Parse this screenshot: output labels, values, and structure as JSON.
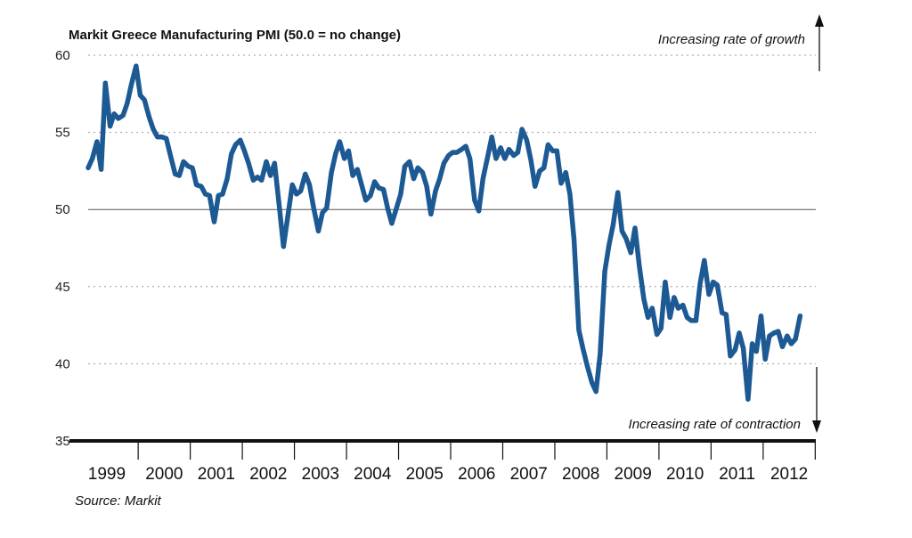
{
  "chart_data": {
    "type": "line",
    "title": "Markit Greece Manufacturing PMI (50.0 = no change)",
    "source": "Source: Markit",
    "annotation_top": "Increasing rate of growth",
    "annotation_bottom": "Increasing rate of contraction",
    "ylim": [
      35,
      60
    ],
    "yticks": [
      60,
      55,
      50,
      45,
      40,
      35
    ],
    "reference_line": 50,
    "grid": "dotted horizontal",
    "x_years": [
      "1999",
      "2000",
      "2001",
      "2002",
      "2003",
      "2004",
      "2005",
      "2006",
      "2007",
      "2008",
      "2009",
      "2010",
      "2011",
      "2012"
    ],
    "xlim": [
      1999.0,
      2012.92
    ],
    "series": [
      {
        "color": "#1d5a94",
        "points": [
          [
            1999.0,
            52.7
          ],
          [
            1999.08,
            53.3
          ],
          [
            1999.17,
            54.4
          ],
          [
            1999.25,
            52.6
          ],
          [
            1999.33,
            58.2
          ],
          [
            1999.42,
            55.4
          ],
          [
            1999.5,
            56.2
          ],
          [
            1999.58,
            55.9
          ],
          [
            1999.67,
            56.1
          ],
          [
            1999.75,
            56.9
          ],
          [
            1999.83,
            58.1
          ],
          [
            1999.92,
            59.3
          ],
          [
            2000.0,
            57.4
          ],
          [
            2000.08,
            57.1
          ],
          [
            2000.17,
            56.0
          ],
          [
            2000.25,
            55.2
          ],
          [
            2000.33,
            54.7
          ],
          [
            2000.42,
            54.7
          ],
          [
            2000.5,
            54.6
          ],
          [
            2000.58,
            53.5
          ],
          [
            2000.67,
            52.3
          ],
          [
            2000.75,
            52.2
          ],
          [
            2000.83,
            53.1
          ],
          [
            2000.92,
            52.8
          ],
          [
            2001.0,
            52.7
          ],
          [
            2001.08,
            51.6
          ],
          [
            2001.17,
            51.5
          ],
          [
            2001.25,
            51.0
          ],
          [
            2001.33,
            50.9
          ],
          [
            2001.42,
            49.2
          ],
          [
            2001.5,
            50.9
          ],
          [
            2001.58,
            51.0
          ],
          [
            2001.67,
            52.0
          ],
          [
            2001.75,
            53.6
          ],
          [
            2001.83,
            54.2
          ],
          [
            2001.92,
            54.5
          ],
          [
            2002.0,
            53.8
          ],
          [
            2002.08,
            53.0
          ],
          [
            2002.17,
            51.9
          ],
          [
            2002.25,
            52.1
          ],
          [
            2002.33,
            51.9
          ],
          [
            2002.42,
            53.1
          ],
          [
            2002.5,
            52.2
          ],
          [
            2002.58,
            53.0
          ],
          [
            2002.67,
            50.2
          ],
          [
            2002.75,
            47.6
          ],
          [
            2002.83,
            49.5
          ],
          [
            2002.92,
            51.6
          ],
          [
            2003.0,
            51.0
          ],
          [
            2003.08,
            51.2
          ],
          [
            2003.17,
            52.3
          ],
          [
            2003.25,
            51.6
          ],
          [
            2003.33,
            50.1
          ],
          [
            2003.42,
            48.6
          ],
          [
            2003.5,
            49.8
          ],
          [
            2003.58,
            50.1
          ],
          [
            2003.67,
            52.4
          ],
          [
            2003.75,
            53.6
          ],
          [
            2003.83,
            54.4
          ],
          [
            2003.92,
            53.3
          ],
          [
            2004.0,
            53.8
          ],
          [
            2004.08,
            52.2
          ],
          [
            2004.17,
            52.6
          ],
          [
            2004.25,
            51.6
          ],
          [
            2004.33,
            50.6
          ],
          [
            2004.42,
            50.9
          ],
          [
            2004.5,
            51.8
          ],
          [
            2004.58,
            51.4
          ],
          [
            2004.67,
            51.3
          ],
          [
            2004.75,
            50.1
          ],
          [
            2004.83,
            49.1
          ],
          [
            2004.92,
            50.1
          ],
          [
            2005.0,
            51.0
          ],
          [
            2005.08,
            52.8
          ],
          [
            2005.17,
            53.1
          ],
          [
            2005.25,
            52.0
          ],
          [
            2005.33,
            52.7
          ],
          [
            2005.42,
            52.4
          ],
          [
            2005.5,
            51.5
          ],
          [
            2005.58,
            49.7
          ],
          [
            2005.67,
            51.2
          ],
          [
            2005.75,
            52.0
          ],
          [
            2005.83,
            53.0
          ],
          [
            2005.92,
            53.5
          ],
          [
            2006.0,
            53.7
          ],
          [
            2006.08,
            53.7
          ],
          [
            2006.17,
            53.9
          ],
          [
            2006.25,
            54.1
          ],
          [
            2006.33,
            53.3
          ],
          [
            2006.42,
            50.6
          ],
          [
            2006.5,
            49.9
          ],
          [
            2006.58,
            52.0
          ],
          [
            2006.67,
            53.4
          ],
          [
            2006.75,
            54.7
          ],
          [
            2006.83,
            53.3
          ],
          [
            2006.92,
            54.0
          ],
          [
            2007.0,
            53.3
          ],
          [
            2007.08,
            53.9
          ],
          [
            2007.17,
            53.5
          ],
          [
            2007.25,
            53.7
          ],
          [
            2007.33,
            55.2
          ],
          [
            2007.42,
            54.5
          ],
          [
            2007.5,
            53.2
          ],
          [
            2007.58,
            51.5
          ],
          [
            2007.67,
            52.5
          ],
          [
            2007.75,
            52.7
          ],
          [
            2007.83,
            54.2
          ],
          [
            2007.92,
            53.8
          ],
          [
            2008.0,
            53.8
          ],
          [
            2008.08,
            51.7
          ],
          [
            2008.17,
            52.4
          ],
          [
            2008.25,
            51.0
          ],
          [
            2008.33,
            48.0
          ],
          [
            2008.42,
            42.2
          ],
          [
            2008.5,
            41.0
          ],
          [
            2008.58,
            39.9
          ],
          [
            2008.67,
            38.8
          ],
          [
            2008.75,
            38.2
          ],
          [
            2008.83,
            40.6
          ],
          [
            2008.92,
            46.0
          ],
          [
            2009.0,
            47.7
          ],
          [
            2009.08,
            49.0
          ],
          [
            2009.17,
            51.1
          ],
          [
            2009.25,
            48.6
          ],
          [
            2009.33,
            48.1
          ],
          [
            2009.42,
            47.2
          ],
          [
            2009.5,
            48.8
          ],
          [
            2009.58,
            46.4
          ],
          [
            2009.67,
            44.2
          ],
          [
            2009.75,
            43.0
          ],
          [
            2009.83,
            43.6
          ],
          [
            2009.92,
            41.9
          ],
          [
            2010.0,
            42.3
          ],
          [
            2010.08,
            45.3
          ],
          [
            2010.17,
            43.0
          ],
          [
            2010.25,
            44.3
          ],
          [
            2010.33,
            43.6
          ],
          [
            2010.42,
            43.8
          ],
          [
            2010.5,
            43.0
          ],
          [
            2010.58,
            42.8
          ],
          [
            2010.67,
            42.8
          ],
          [
            2010.75,
            45.2
          ],
          [
            2010.83,
            46.7
          ],
          [
            2010.92,
            44.5
          ],
          [
            2011.0,
            45.3
          ],
          [
            2011.08,
            45.1
          ],
          [
            2011.17,
            43.3
          ],
          [
            2011.25,
            43.2
          ],
          [
            2011.33,
            40.5
          ],
          [
            2011.42,
            40.9
          ],
          [
            2011.5,
            42.0
          ],
          [
            2011.58,
            41.0
          ],
          [
            2011.67,
            37.7
          ],
          [
            2011.75,
            41.3
          ],
          [
            2011.83,
            40.8
          ],
          [
            2011.92,
            43.1
          ],
          [
            2012.0,
            40.3
          ],
          [
            2012.08,
            41.8
          ],
          [
            2012.17,
            42.0
          ],
          [
            2012.25,
            42.1
          ],
          [
            2012.33,
            41.1
          ],
          [
            2012.42,
            41.8
          ],
          [
            2012.5,
            41.3
          ],
          [
            2012.58,
            41.6
          ],
          [
            2012.67,
            43.1
          ]
        ]
      }
    ]
  }
}
